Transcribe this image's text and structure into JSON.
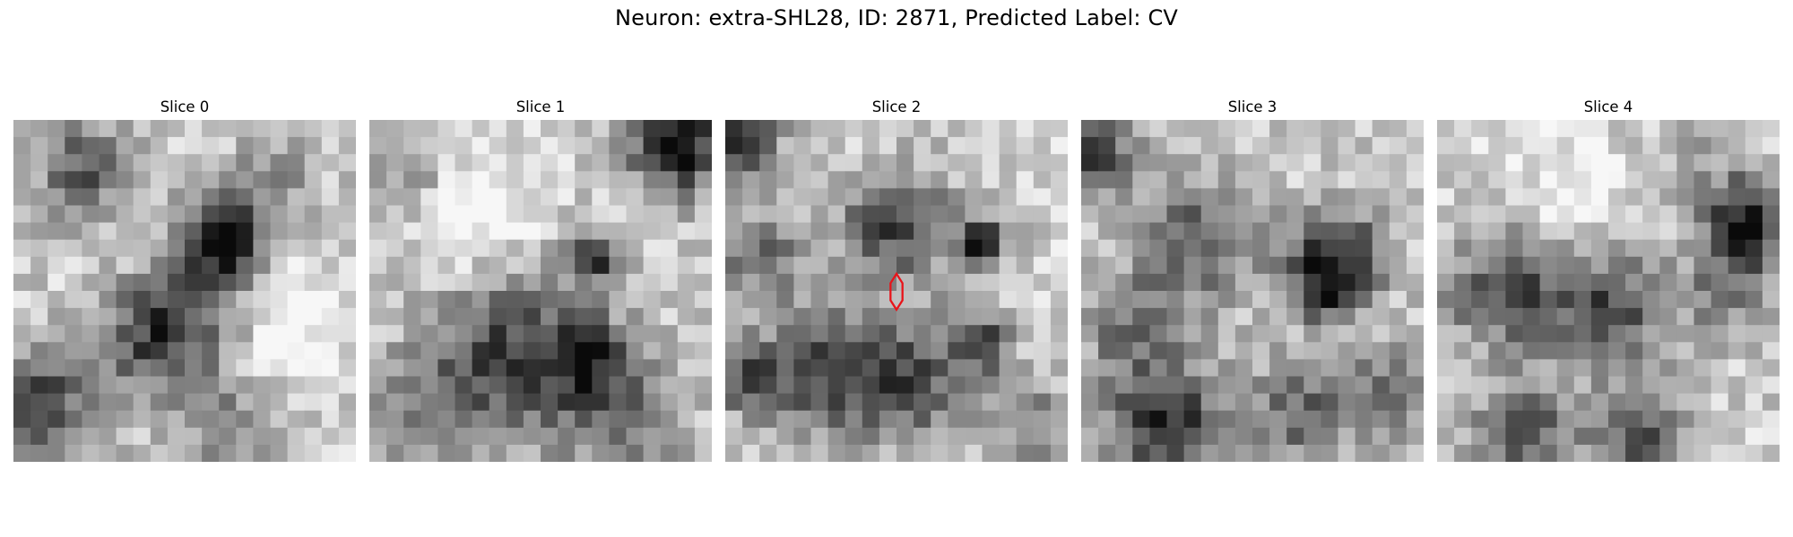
{
  "figure": {
    "title": "Neuron: extra-SHL28, ID: 2871, Predicted Label: CV"
  },
  "panels": [
    {
      "title": "Slice 0"
    },
    {
      "title": "Slice 1"
    },
    {
      "title": "Slice 2"
    },
    {
      "title": "Slice 3"
    },
    {
      "title": "Slice 4"
    }
  ],
  "colors": {
    "background": "#ffffff",
    "marker": "#e8141a",
    "colormap": "grayscale"
  },
  "marker": {
    "shape": "hexagon-outline",
    "slice": 2
  }
}
